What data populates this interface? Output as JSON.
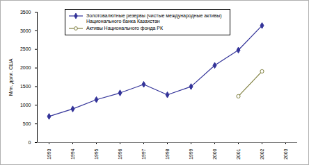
{
  "chart_data": {
    "type": "line",
    "y_label": "Млн. долл. США",
    "categories": [
      "1993",
      "1994",
      "1995",
      "1996",
      "1997",
      "1998",
      "1999",
      "2000",
      "2001",
      "2002",
      "2003"
    ],
    "series": [
      {
        "name": "Золотовалютные резервы (чистые международные активы) Национального банка Казахстан",
        "color": "#333399",
        "marker": "diamond",
        "line_style": "solid",
        "values": [
          700,
          900,
          1150,
          1330,
          1560,
          1280,
          1500,
          2070,
          2480,
          3140,
          null
        ]
      },
      {
        "name": "Активы Национального фонда РК",
        "color": "#808040",
        "marker": "open circle",
        "line_style": "solid",
        "values": [
          null,
          null,
          null,
          null,
          null,
          null,
          null,
          null,
          1240,
          1910,
          null
        ]
      }
    ],
    "ylim": [
      0,
      3500
    ],
    "yticks": [
      0,
      500,
      1000,
      1500,
      2000,
      2500,
      3000,
      3500
    ],
    "grid": false,
    "legend": "top-left"
  }
}
